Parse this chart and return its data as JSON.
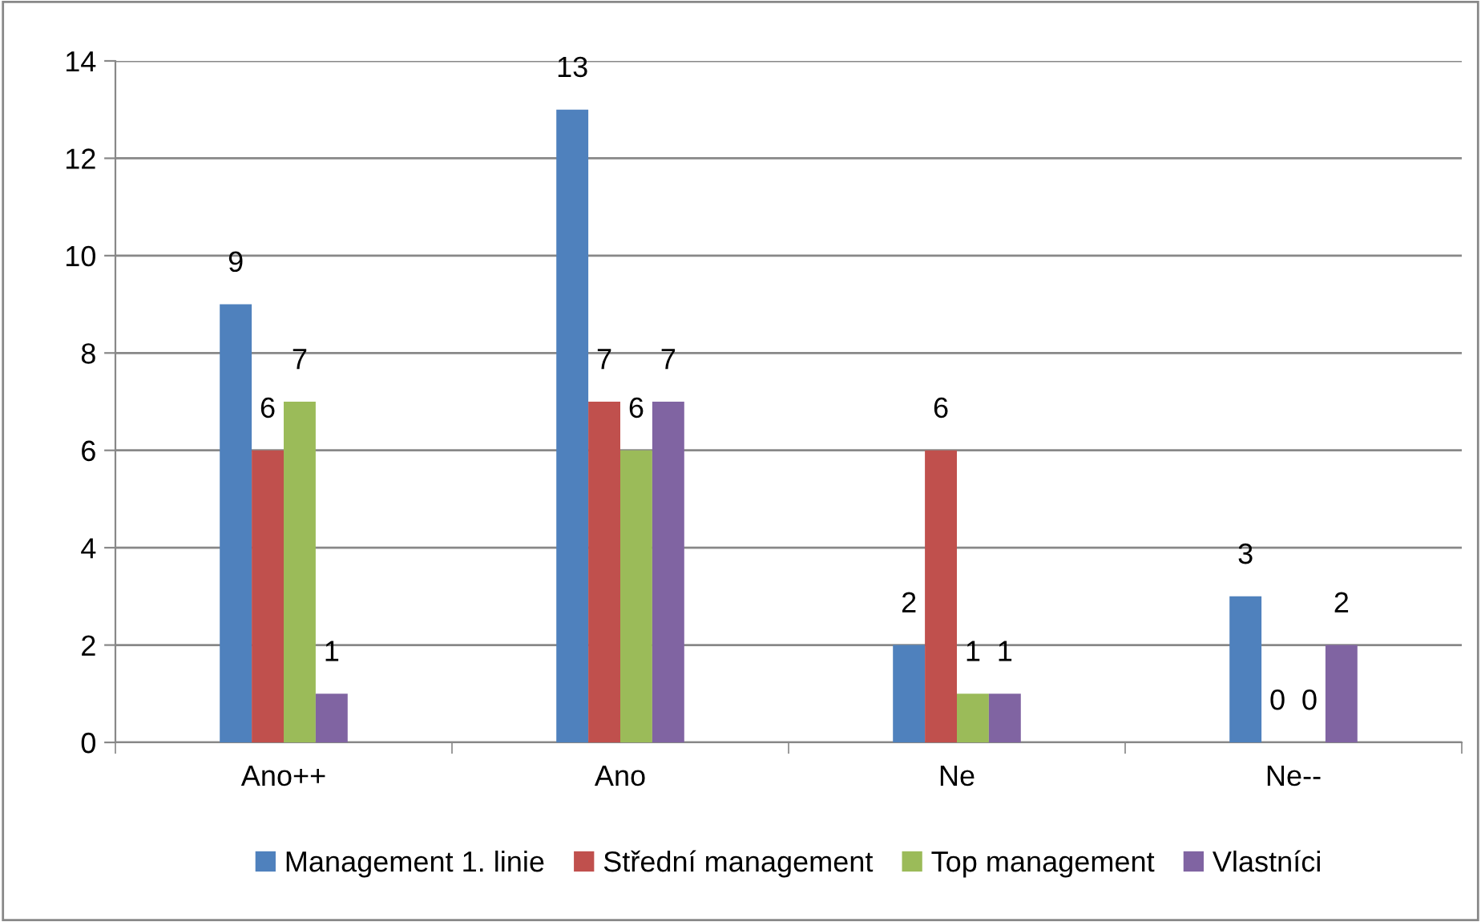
{
  "chart_data": {
    "type": "bar",
    "categories": [
      "Ano++",
      "Ano",
      "Ne",
      "Ne--"
    ],
    "series": [
      {
        "name": "Management 1. linie",
        "color": "#4f81bd",
        "values": [
          9,
          13,
          2,
          3
        ]
      },
      {
        "name": "Střední management",
        "color": "#c0504d",
        "values": [
          6,
          7,
          6,
          0
        ]
      },
      {
        "name": "Top management",
        "color": "#9bbb59",
        "values": [
          7,
          6,
          1,
          0
        ]
      },
      {
        "name": "Vlastníci",
        "color": "#8064a2",
        "values": [
          1,
          7,
          1,
          2
        ]
      }
    ],
    "ylim": [
      0,
      14
    ],
    "yticks": [
      0,
      2,
      4,
      6,
      8,
      10,
      12,
      14
    ],
    "grid": "y",
    "legend": "bottom",
    "data_labels": true
  }
}
